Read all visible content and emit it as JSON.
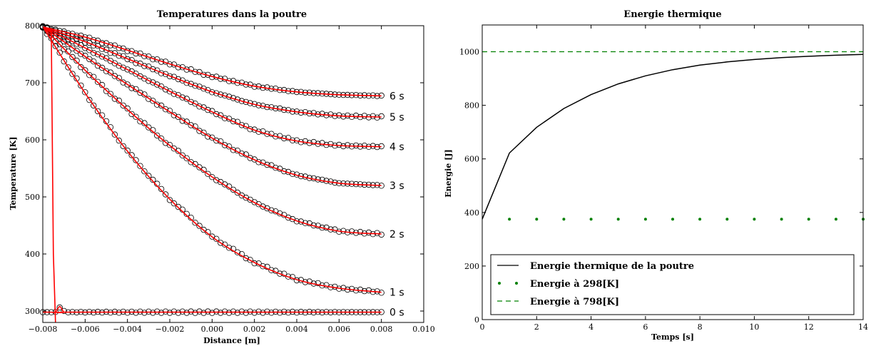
{
  "chart_data": [
    {
      "type": "line",
      "title": "Temperatures dans la poutre",
      "xlabel": "Distance [m]",
      "ylabel": "Temperature [K]",
      "xlim": [
        -0.008,
        0.01
      ],
      "ylim": [
        280,
        800
      ],
      "xticks": [
        -0.008,
        -0.006,
        -0.004,
        -0.002,
        0.0,
        0.002,
        0.004,
        0.006,
        0.008,
        0.01
      ],
      "xtick_labels": [
        "−0.008",
        "−0.006",
        "−0.004",
        "−0.002",
        "0.000",
        "0.002",
        "0.004",
        "0.006",
        "0.008",
        "0.010"
      ],
      "yticks": [
        300,
        400,
        500,
        600,
        700,
        800
      ],
      "yticks_labels": [
        "300",
        "400",
        "500",
        "600",
        "700",
        "800"
      ],
      "grid": false,
      "marker_color": "#000000",
      "line_color": "#ff0000",
      "series": [
        {
          "label": "0 s",
          "x": [
            -0.008,
            -0.0076,
            -0.0074,
            -0.0072,
            -0.007,
            -0.0068,
            0.0,
            0.008
          ],
          "y": [
            298,
            298,
            298,
            308,
            298,
            298,
            298,
            298
          ],
          "markers": [
            298,
            298,
            298,
            298,
            298,
            298,
            298,
            298,
            298
          ]
        },
        {
          "label": "1 s",
          "x": [
            -0.008,
            -0.006,
            -0.004,
            -0.002,
            0.0,
            0.002,
            0.004,
            0.006,
            0.008
          ],
          "y": [
            798,
            682,
            580,
            496,
            430,
            385,
            355,
            340,
            333
          ]
        },
        {
          "label": "2 s",
          "x": [
            -0.008,
            -0.006,
            -0.004,
            -0.002,
            0.0,
            0.002,
            0.004,
            0.006,
            0.008
          ],
          "y": [
            798,
            722,
            653,
            590,
            535,
            490,
            458,
            440,
            435
          ]
        },
        {
          "label": "3 s",
          "x": [
            -0.008,
            -0.006,
            -0.004,
            -0.002,
            0.0,
            0.002,
            0.004,
            0.006,
            0.008
          ],
          "y": [
            798,
            746,
            697,
            649,
            603,
            565,
            538,
            524,
            520
          ]
        },
        {
          "label": "4 s",
          "x": [
            -0.008,
            -0.006,
            -0.004,
            -0.002,
            0.0,
            0.002,
            0.004,
            0.006,
            0.008
          ],
          "y": [
            798,
            761,
            723,
            685,
            649,
            617,
            598,
            590,
            588
          ]
        },
        {
          "label": "5 s",
          "x": [
            -0.008,
            -0.006,
            -0.004,
            -0.002,
            0.0,
            0.002,
            0.004,
            0.006,
            0.008
          ],
          "y": [
            798,
            772,
            742,
            712,
            684,
            662,
            649,
            642,
            640
          ]
        },
        {
          "label": "6 s",
          "x": [
            -0.008,
            -0.006,
            -0.004,
            -0.002,
            0.0,
            0.002,
            0.004,
            0.006,
            0.008
          ],
          "y": [
            798,
            780,
            757,
            733,
            711,
            694,
            684,
            679,
            677
          ]
        }
      ],
      "transient_line": {
        "x": [
          -0.008,
          -0.0076,
          -0.0075,
          -0.0074
        ],
        "y": [
          798,
          790,
          400,
          280
        ]
      }
    },
    {
      "type": "line",
      "title": "Energie thermique",
      "xlabel": "Temps [s]",
      "ylabel": "Energie [J]",
      "xlim": [
        0,
        14
      ],
      "ylim": [
        0,
        1100
      ],
      "xticks": [
        0,
        2,
        4,
        6,
        8,
        10,
        12,
        14
      ],
      "yticks": [
        0,
        200,
        400,
        600,
        800,
        1000
      ],
      "grid": false,
      "legend_placement": "bottom",
      "series": [
        {
          "name": "Energie thermique de la poutre",
          "style": "solid",
          "color": "#000000",
          "x": [
            0,
            1,
            2,
            3,
            4,
            5,
            6,
            7,
            8,
            9,
            10,
            11,
            12,
            13,
            14
          ],
          "y": [
            375,
            622,
            718,
            788,
            840,
            880,
            910,
            933,
            950,
            962,
            971,
            978,
            983,
            987,
            990
          ]
        },
        {
          "name": "Energie à 298[K]",
          "style": "dots",
          "color": "#008000",
          "x": [
            1,
            2,
            3,
            4,
            5,
            6,
            7,
            8,
            9,
            10,
            11,
            12,
            13,
            14
          ],
          "y": [
            375,
            375,
            375,
            375,
            375,
            375,
            375,
            375,
            375,
            375,
            375,
            375,
            375,
            375
          ]
        },
        {
          "name": "Energie à 798[K]",
          "style": "dashed",
          "color": "#008000",
          "x": [
            0,
            14
          ],
          "y": [
            1000,
            1000
          ]
        }
      ]
    }
  ]
}
